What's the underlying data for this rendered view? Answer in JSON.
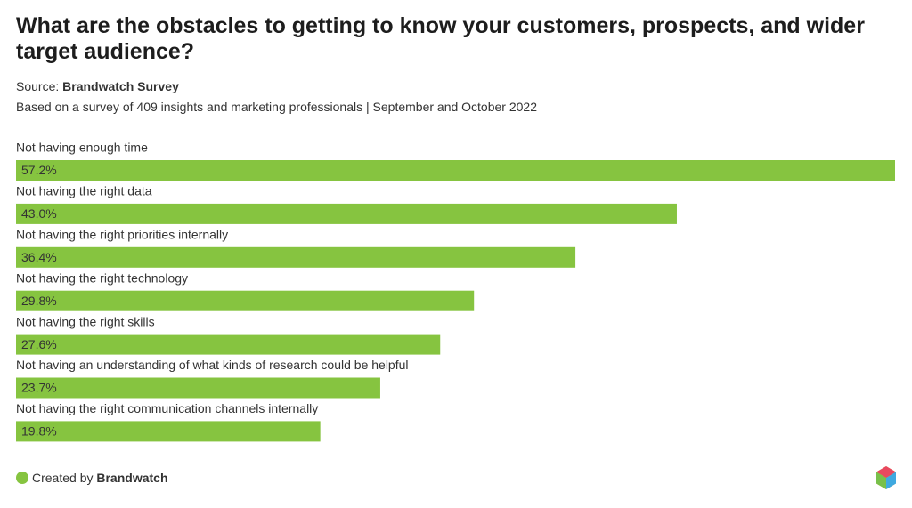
{
  "chart_data": {
    "type": "bar",
    "title": "What are the obstacles to getting to know your customers, prospects, and wider target audience?",
    "source_label": "Source:",
    "source": "Brandwatch Survey",
    "subtitle": "Based on a survey of 409 insights and marketing professionals | September and October 2022",
    "categories": [
      "Not having enough time",
      "Not having the right data",
      "Not having the right priorities internally",
      "Not having the right technology",
      "Not having the right skills",
      "Not having an understanding of what kinds of research could be helpful",
      "Not having the right communication channels internally"
    ],
    "values": [
      57.2,
      43.0,
      36.4,
      29.8,
      27.6,
      23.7,
      19.8
    ],
    "value_labels": [
      "57.2%",
      "43.0%",
      "36.4%",
      "29.8%",
      "27.6%",
      "23.7%",
      "19.8%"
    ],
    "color": "#86c440",
    "footer_label": "Created by",
    "footer_brand": "Brandwatch"
  }
}
